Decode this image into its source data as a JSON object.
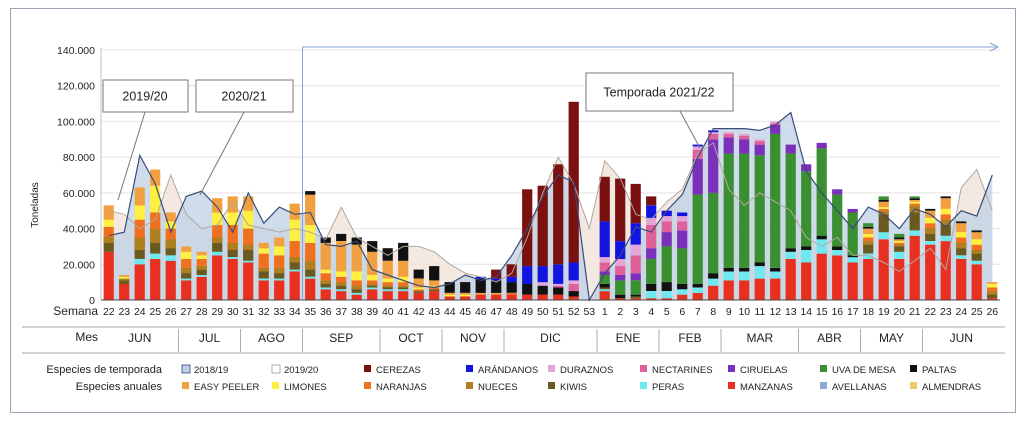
{
  "chart_data": {
    "type": "bar",
    "ylabel": "Toneladas",
    "ylim": [
      0,
      140000
    ],
    "yticks": [
      "0",
      "20.000",
      "40.000",
      "60.000",
      "80.000",
      "100.000",
      "120.000",
      "140.000"
    ],
    "row_labels": {
      "week": "Semana",
      "month": "Mes"
    },
    "weeks": [
      "22",
      "23",
      "24",
      "25",
      "26",
      "27",
      "28",
      "29",
      "30",
      "31",
      "32",
      "33",
      "34",
      "35",
      "36",
      "37",
      "38",
      "39",
      "40",
      "41",
      "42",
      "43",
      "44",
      "45",
      "46",
      "47",
      "48",
      "49",
      "50",
      "51",
      "52",
      "53",
      "1",
      "2",
      "3",
      "4",
      "5",
      "6",
      "7",
      "8",
      "9",
      "10",
      "11",
      "12",
      "13",
      "14",
      "15",
      "16",
      "17",
      "18",
      "19",
      "20",
      "21",
      "22",
      "23",
      "24",
      "25",
      "26"
    ],
    "months": [
      {
        "label": "JUN",
        "weeks": 5
      },
      {
        "label": "JUL",
        "weeks": 4
      },
      {
        "label": "AGO",
        "weeks": 4
      },
      {
        "label": "SEP",
        "weeks": 5
      },
      {
        "label": "OCT",
        "weeks": 4
      },
      {
        "label": "NOV",
        "weeks": 4
      },
      {
        "label": "DIC",
        "weeks": 6
      },
      {
        "label": "ENE",
        "weeks": 4
      },
      {
        "label": "FEB",
        "weeks": 4
      },
      {
        "label": "MAR",
        "weeks": 5
      },
      {
        "label": "ABR",
        "weeks": 4
      },
      {
        "label": "MAY",
        "weeks": 4
      },
      {
        "label": "JUN",
        "weeks": 5
      }
    ],
    "callouts": [
      "2019/20",
      "2020/21",
      "Temporada 2021/22"
    ],
    "series_order": [
      "almendras",
      "avellanas",
      "manzanas",
      "peras",
      "kiwis",
      "nueces",
      "naranjas",
      "limones",
      "easy_peeler",
      "paltas",
      "uva_de_mesa",
      "ciruelas",
      "nectarines",
      "duraznos",
      "arandanos",
      "cerezas"
    ],
    "legend": {
      "row1_title": "Especies de temporada",
      "row2_title": "Especies anuales",
      "row1": [
        {
          "key": "area_1819",
          "label": "2018/19"
        },
        {
          "key": "area_1920",
          "label": "2019/20"
        },
        {
          "key": "cerezas",
          "label": "CEREZAS"
        },
        {
          "key": "arandanos",
          "label": "ARÁNDANOS"
        },
        {
          "key": "duraznos",
          "label": "DURAZNOS"
        },
        {
          "key": "nectarines",
          "label": "NECTARINES"
        },
        {
          "key": "ciruelas",
          "label": "CIRUELAS"
        },
        {
          "key": "uva_de_mesa",
          "label": "UVA DE MESA"
        },
        {
          "key": "paltas",
          "label": "PALTAS"
        }
      ],
      "row2": [
        {
          "key": "easy_peeler",
          "label": "EASY PEELER"
        },
        {
          "key": "limones",
          "label": "LIMONES"
        },
        {
          "key": "naranjas",
          "label": "NARANJAS"
        },
        {
          "key": "nueces",
          "label": "NUECES"
        },
        {
          "key": "kiwis",
          "label": "KIWIS"
        },
        {
          "key": "peras",
          "label": "PERAS"
        },
        {
          "key": "manzanas",
          "label": "MANZANAS"
        },
        {
          "key": "avellanas",
          "label": "AVELLANAS"
        },
        {
          "key": "almendras",
          "label": "ALMENDRAS"
        }
      ]
    },
    "colors": {
      "area_1819": "#bdd0e6",
      "area_1920": "#f1e5db",
      "line_1819": "#3a4a7a",
      "line_1920": "#b0a8a0",
      "cerezas": "#7a1010",
      "arandanos": "#1414e0",
      "duraznos": "#e2a6d8",
      "nectarines": "#e0609a",
      "ciruelas": "#7a30b8",
      "uva_de_mesa": "#3a9030",
      "paltas": "#111111",
      "easy_peeler": "#f0a040",
      "limones": "#fff040",
      "naranjas": "#f07020",
      "nueces": "#b08020",
      "kiwis": "#6a5a20",
      "peras": "#70e8f0",
      "manzanas": "#e83020",
      "avellanas": "#8aaad8",
      "almendras": "#f0c870",
      "arrow": "#8aa0d8"
    },
    "area_1819": [
      36000,
      38000,
      81000,
      65000,
      38000,
      58000,
      61000,
      52000,
      38000,
      60000,
      43000,
      52000,
      48000,
      49000,
      31000,
      30000,
      33000,
      17000,
      14000,
      11000,
      8000,
      7000,
      9000,
      14000,
      11000,
      13000,
      25000,
      40000,
      58000,
      70000,
      66000,
      0,
      15000,
      25000,
      41000,
      38000,
      50000,
      59000,
      80000,
      96000,
      96000,
      96000,
      95000,
      98000,
      105000,
      72000,
      60000,
      50000,
      40000,
      52000,
      48000,
      40000,
      51000,
      48000,
      41000,
      50000,
      47000,
      70000
    ],
    "area_1920": [
      50000,
      48000,
      40000,
      45000,
      70000,
      48000,
      40000,
      42000,
      55000,
      42000,
      40000,
      38000,
      40000,
      38000,
      34000,
      52000,
      35000,
      30000,
      25000,
      30000,
      30000,
      27000,
      20000,
      15000,
      13000,
      10000,
      15000,
      35000,
      60000,
      80000,
      65000,
      40000,
      78000,
      68000,
      48000,
      45000,
      55000,
      62000,
      82000,
      88000,
      62000,
      53000,
      60000,
      55000,
      50000,
      35000,
      30000,
      35000,
      25000,
      25000,
      21000,
      16000,
      22000,
      29000,
      17000,
      63000,
      73000,
      50000
    ],
    "weekly": [
      {
        "manzanas": 27000,
        "nueces": 3000,
        "kiwis": 5000,
        "naranjas": 6000,
        "limones": 4000,
        "easy_peeler": 8000
      },
      {
        "manzanas": 9000,
        "kiwis": 2000,
        "nueces": 1000,
        "limones": 1000,
        "easy_peeler": 1000
      },
      {
        "manzanas": 20000,
        "peras": 3000,
        "kiwis": 5000,
        "nueces": 7000,
        "naranjas": 10000,
        "limones": 8000,
        "easy_peeler": 10000
      },
      {
        "manzanas": 23000,
        "peras": 3000,
        "kiwis": 6000,
        "nueces": 8000,
        "naranjas": 9000,
        "limones": 15000,
        "easy_peeler": 9000
      },
      {
        "manzanas": 22000,
        "peras": 3000,
        "kiwis": 4000,
        "nueces": 5000,
        "naranjas": 6000,
        "limones": 4000,
        "easy_peeler": 5000
      },
      {
        "manzanas": 11000,
        "peras": 1000,
        "kiwis": 3000,
        "nueces": 3000,
        "naranjas": 5000,
        "limones": 4000,
        "easy_peeler": 3000
      },
      {
        "manzanas": 13000,
        "peras": 1000,
        "kiwis": 3000,
        "nueces": 2000,
        "naranjas": 4000,
        "limones": 2000,
        "easy_peeler": 2000
      },
      {
        "manzanas": 25000,
        "peras": 2000,
        "kiwis": 5000,
        "nueces": 3000,
        "naranjas": 7000,
        "limones": 7000,
        "easy_peeler": 8000
      },
      {
        "manzanas": 23000,
        "peras": 1000,
        "kiwis": 4000,
        "nueces": 4000,
        "naranjas": 10000,
        "limones": 7000,
        "easy_peeler": 9000
      },
      {
        "manzanas": 21000,
        "peras": 1000,
        "kiwis": 6000,
        "nueces": 3000,
        "naranjas": 9000,
        "limones": 10000,
        "easy_peeler": 8000
      },
      {
        "manzanas": 11000,
        "peras": 1000,
        "kiwis": 4000,
        "nueces": 2000,
        "naranjas": 8000,
        "limones": 3000,
        "easy_peeler": 3000
      },
      {
        "manzanas": 11000,
        "peras": 1000,
        "kiwis": 3000,
        "nueces": 3000,
        "naranjas": 7000,
        "limones": 5000,
        "easy_peeler": 5000
      },
      {
        "manzanas": 16000,
        "peras": 1000,
        "kiwis": 4000,
        "nueces": 3000,
        "naranjas": 9000,
        "limones": 12000,
        "easy_peeler": 9000
      },
      {
        "paltas": 2000,
        "easy_peeler": 17000,
        "limones": 10000,
        "naranjas": 10000,
        "nueces": 5000,
        "kiwis": 4000,
        "peras": 1000,
        "manzanas": 12000
      },
      {
        "paltas": 3000,
        "easy_peeler": 15000,
        "limones": 2000,
        "naranjas": 4000,
        "nueces": 2000,
        "kiwis": 2000,
        "peras": 1000,
        "manzanas": 6000
      },
      {
        "paltas": 4000,
        "easy_peeler": 17000,
        "limones": 3000,
        "naranjas": 3000,
        "nueces": 2000,
        "kiwis": 2000,
        "peras": 1000,
        "manzanas": 5000
      },
      {
        "paltas": 4000,
        "easy_peeler": 15000,
        "limones": 5000,
        "naranjas": 3000,
        "nueces": 2000,
        "kiwis": 2000,
        "peras": 1000,
        "manzanas": 3000
      },
      {
        "paltas": 6000,
        "easy_peeler": 13000,
        "limones": 3000,
        "naranjas": 2000,
        "nueces": 1000,
        "kiwis": 1000,
        "peras": 1000,
        "manzanas": 6000
      },
      {
        "paltas": 7000,
        "easy_peeler": 10000,
        "limones": 2000,
        "naranjas": 2000,
        "nueces": 1000,
        "kiwis": 1000,
        "peras": 1000,
        "manzanas": 5000
      },
      {
        "paltas": 10000,
        "easy_peeler": 9000,
        "limones": 3000,
        "naranjas": 2000,
        "nueces": 1000,
        "kiwis": 1000,
        "peras": 1000,
        "manzanas": 5000
      },
      {
        "paltas": 5000,
        "easy_peeler": 5000,
        "limones": 1000,
        "naranjas": 1000,
        "kiwis": 1000,
        "manzanas": 4000
      },
      {
        "paltas": 8000,
        "easy_peeler": 3000,
        "limones": 1000,
        "naranjas": 1000,
        "kiwis": 1000,
        "manzanas": 5000
      },
      {
        "paltas": 6000,
        "easy_peeler": 1000,
        "limones": 1000,
        "manzanas": 2000
      },
      {
        "paltas": 6000,
        "easy_peeler": 1000,
        "limones": 1000,
        "manzanas": 2000
      },
      {
        "paltas": 8000,
        "easy_peeler": 1000,
        "arandanos": 1000,
        "manzanas": 3000
      },
      {
        "cerezas": 5000,
        "paltas": 7000,
        "easy_peeler": 1000,
        "arandanos": 1000,
        "manzanas": 3000
      },
      {
        "cerezas": 7000,
        "paltas": 6000,
        "arandanos": 3000,
        "naranjas": 1000,
        "manzanas": 3000
      },
      {
        "cerezas": 43000,
        "arandanos": 10000,
        "paltas": 6000,
        "manzanas": 3000
      },
      {
        "cerezas": 45000,
        "arandanos": 9000,
        "duraznos": 2000,
        "paltas": 5000,
        "manzanas": 3000
      },
      {
        "cerezas": 56000,
        "arandanos": 11000,
        "duraznos": 1000,
        "nectarines": 1000,
        "paltas": 4000,
        "manzanas": 3000
      },
      {
        "cerezas": 90000,
        "arandanos": 10000,
        "nectarines": 4000,
        "duraznos": 2000,
        "paltas": 3000,
        "manzanas": 2000
      },
      {},
      {
        "cerezas": 25000,
        "arandanos": 20000,
        "duraznos": 3000,
        "nectarines": 5000,
        "ciruelas": 2000,
        "uva_de_mesa": 5000,
        "paltas": 2000,
        "kiwis": 1000,
        "peras": 1000,
        "manzanas": 5000
      },
      {
        "cerezas": 35000,
        "arandanos": 10000,
        "duraznos": 4000,
        "nectarines": 5000,
        "ciruelas": 3000,
        "uva_de_mesa": 8000,
        "paltas": 2000,
        "manzanas": 1000
      },
      {
        "cerezas": 22000,
        "arandanos": 12000,
        "duraznos": 6000,
        "nectarines": 10000,
        "ciruelas": 4000,
        "uva_de_mesa": 8000,
        "paltas": 1000,
        "kiwis": 1000,
        "manzanas": 1000
      },
      {
        "cerezas": 5000,
        "arandanos": 7000,
        "duraznos": 4000,
        "nectarines": 13000,
        "ciruelas": 6000,
        "uva_de_mesa": 14000,
        "paltas": 4000,
        "peras": 4000,
        "manzanas": 1000
      },
      {
        "arandanos": 3000,
        "duraznos": 3000,
        "nectarines": 6000,
        "ciruelas": 8000,
        "uva_de_mesa": 20000,
        "paltas": 5000,
        "peras": 4000,
        "manzanas": 1000
      },
      {
        "arandanos": 2000,
        "duraznos": 3000,
        "nectarines": 5000,
        "ciruelas": 10000,
        "uva_de_mesa": 20000,
        "paltas": 3000,
        "peras": 3000,
        "manzanas": 3000
      },
      {
        "arandanos": 1000,
        "duraznos": 2000,
        "nectarines": 5000,
        "ciruelas": 20000,
        "uva_de_mesa": 50000,
        "paltas": 2000,
        "peras": 3000,
        "manzanas": 4000
      },
      {
        "arandanos": 1000,
        "duraznos": 1000,
        "nectarines": 3000,
        "ciruelas": 30000,
        "uva_de_mesa": 45000,
        "paltas": 3000,
        "peras": 4000,
        "manzanas": 8000
      },
      {
        "duraznos": 1000,
        "nectarines": 2000,
        "ciruelas": 9000,
        "uva_de_mesa": 64000,
        "paltas": 2000,
        "peras": 5000,
        "manzanas": 11000
      },
      {
        "duraznos": 1000,
        "nectarines": 2000,
        "ciruelas": 8000,
        "uva_de_mesa": 64000,
        "paltas": 2000,
        "peras": 5000,
        "manzanas": 11000
      },
      {
        "duraznos": 1000,
        "nectarines": 2000,
        "ciruelas": 6000,
        "uva_de_mesa": 60000,
        "paltas": 2000,
        "peras": 7000,
        "manzanas": 12000
      },
      {
        "duraznos": 1000,
        "nectarines": 1000,
        "ciruelas": 5000,
        "uva_de_mesa": 75000,
        "paltas": 2000,
        "peras": 4000,
        "manzanas": 12000
      },
      {
        "ciruelas": 5000,
        "uva_de_mesa": 53000,
        "paltas": 2000,
        "peras": 4000,
        "manzanas": 23000
      },
      {
        "ciruelas": 4000,
        "uva_de_mesa": 42000,
        "paltas": 2000,
        "peras": 7000,
        "manzanas": 21000
      },
      {
        "ciruelas": 3000,
        "uva_de_mesa": 49000,
        "paltas": 2000,
        "peras": 8000,
        "manzanas": 26000
      },
      {
        "ciruelas": 3000,
        "uva_de_mesa": 29000,
        "paltas": 2000,
        "peras": 3000,
        "manzanas": 25000
      },
      {
        "ciruelas": 2000,
        "uva_de_mesa": 24000,
        "paltas": 1000,
        "peras": 3000,
        "manzanas": 21000
      },
      {
        "uva_de_mesa": 2000,
        "paltas": 1000,
        "easy_peeler": 3000,
        "limones": 2000,
        "naranjas": 2000,
        "nueces": 2000,
        "kiwis": 5000,
        "peras": 3000,
        "manzanas": 23000
      },
      {
        "uva_de_mesa": 2000,
        "paltas": 1000,
        "easy_peeler": 3000,
        "limones": 1000,
        "naranjas": 1000,
        "nueces": 2000,
        "kiwis": 10000,
        "peras": 4000,
        "manzanas": 34000
      },
      {
        "uva_de_mesa": 2000,
        "paltas": 1000,
        "easy_peeler": 1000,
        "limones": 1000,
        "naranjas": 1000,
        "nueces": 1000,
        "kiwis": 3000,
        "peras": 4000,
        "manzanas": 23000
      },
      {
        "uva_de_mesa": 1000,
        "paltas": 1000,
        "easy_peeler": 1000,
        "limones": 1000,
        "naranjas": 1000,
        "nueces": 4000,
        "kiwis": 10000,
        "peras": 3000,
        "manzanas": 36000
      },
      {
        "paltas": 1000,
        "easy_peeler": 4000,
        "limones": 3000,
        "naranjas": 3000,
        "nueces": 3000,
        "kiwis": 4000,
        "peras": 2000,
        "manzanas": 31000
      },
      {
        "paltas": 1000,
        "easy_peeler": 6000,
        "limones": 3000,
        "naranjas": 3000,
        "nueces": 3000,
        "kiwis": 6000,
        "peras": 3000,
        "manzanas": 33000
      },
      {
        "paltas": 1000,
        "easy_peeler": 5000,
        "limones": 3000,
        "naranjas": 3000,
        "nueces": 3000,
        "kiwis": 4000,
        "peras": 2000,
        "manzanas": 23000
      },
      {
        "paltas": 1000,
        "easy_peeler": 4000,
        "limones": 3000,
        "naranjas": 3000,
        "nueces": 2000,
        "kiwis": 4000,
        "peras": 2000,
        "manzanas": 20000
      },
      {
        "easy_peeler": 1000,
        "limones": 2000,
        "naranjas": 2000,
        "nueces": 2000,
        "kiwis": 2000,
        "manzanas": 1000
      }
    ]
  }
}
